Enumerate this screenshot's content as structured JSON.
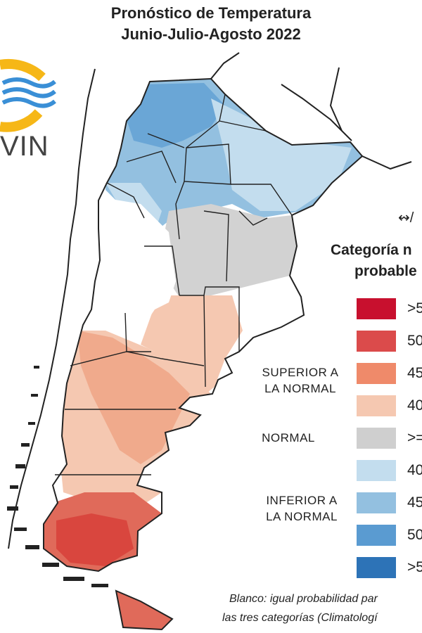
{
  "title": {
    "line1": "Pronóstico de Temperatura",
    "line2": "Junio-Julio-Agosto 2022"
  },
  "logo": {
    "text": "VIN",
    "colors": {
      "sun": "#f6b717",
      "waves": "#3a8fd6"
    }
  },
  "legend": {
    "title_line1": "Categoría n",
    "title_line2": "probable",
    "items": [
      {
        "color": "#c8102e",
        "label": ">5"
      },
      {
        "color": "#db4b4b",
        "label": "50"
      },
      {
        "color": "#ef8a6a",
        "label": "45"
      },
      {
        "color": "#f5c8b1",
        "label": "40"
      },
      {
        "color": "#cfcfcf",
        "label": ">="
      },
      {
        "color": "#c3ddee",
        "label": "40"
      },
      {
        "color": "#93c0e0",
        "label": "45"
      },
      {
        "color": "#5a9bd1",
        "label": "50"
      },
      {
        "color": "#2d73b7",
        "label": ">5"
      }
    ],
    "groups": {
      "superior_line1": "SUPERIOR A",
      "superior_line2": "LA NORMAL",
      "normal": "NORMAL",
      "inferior_line1": "INFERIOR A",
      "inferior_line2": "LA NORMAL"
    }
  },
  "note": {
    "line1": "Blanco: igual probabilidad par",
    "line2": "las tres categorías (Climatologí"
  },
  "marker_glyph": "↭/",
  "map_colors": {
    "blue_light": "#c3ddee",
    "blue_mid": "#93c0e0",
    "blue_strong": "#6aa6d6",
    "grey": "#d2d2d2",
    "salmon_light": "#f5c8b1",
    "salmon_mid": "#f0aa8c",
    "red": "#e06a5a",
    "red_strong": "#d9463e",
    "border": "#222222"
  }
}
